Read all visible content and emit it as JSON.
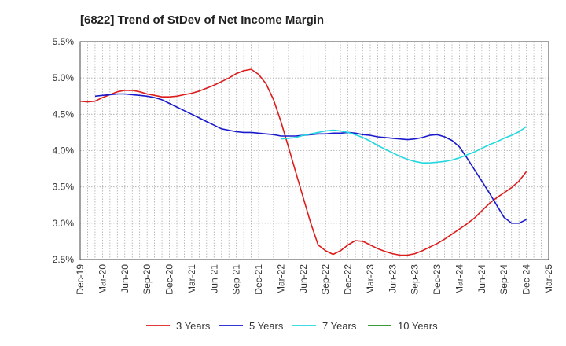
{
  "chart_data": {
    "type": "line",
    "title": "[6822]  Trend of StDev of Net Income Margin",
    "xlabel": "",
    "ylabel": "",
    "x_ticks": [
      "Dec-19",
      "Mar-20",
      "Jun-20",
      "Sep-20",
      "Dec-20",
      "Mar-21",
      "Jun-21",
      "Sep-21",
      "Dec-21",
      "Mar-22",
      "Jun-22",
      "Sep-22",
      "Dec-22",
      "Mar-23",
      "Jun-23",
      "Sep-23",
      "Dec-23",
      "Mar-24",
      "Jun-24",
      "Sep-24",
      "Dec-24",
      "Mar-25"
    ],
    "y_ticks": [
      "2.5%",
      "3.0%",
      "3.5%",
      "4.0%",
      "4.5%",
      "5.0%",
      "5.5%"
    ],
    "ylim": [
      2.5,
      5.5
    ],
    "grid": true,
    "legend_position": "bottom",
    "series": [
      {
        "name": "3 Years",
        "color": "#dd1c1c",
        "points": [
          [
            "Dec-19",
            4.68
          ],
          [
            "Jan-20",
            4.67
          ],
          [
            "Feb-20",
            4.68
          ],
          [
            "Mar-20",
            4.73
          ],
          [
            "Apr-20",
            4.77
          ],
          [
            "May-20",
            4.81
          ],
          [
            "Jun-20",
            4.83
          ],
          [
            "Jul-20",
            4.83
          ],
          [
            "Aug-20",
            4.81
          ],
          [
            "Sep-20",
            4.78
          ],
          [
            "Oct-20",
            4.76
          ],
          [
            "Nov-20",
            4.74
          ],
          [
            "Dec-20",
            4.74
          ],
          [
            "Jan-21",
            4.75
          ],
          [
            "Feb-21",
            4.77
          ],
          [
            "Mar-21",
            4.79
          ],
          [
            "Apr-21",
            4.82
          ],
          [
            "May-21",
            4.86
          ],
          [
            "Jun-21",
            4.9
          ],
          [
            "Jul-21",
            4.95
          ],
          [
            "Aug-21",
            5.0
          ],
          [
            "Sep-21",
            5.06
          ],
          [
            "Oct-21",
            5.1
          ],
          [
            "Nov-21",
            5.12
          ],
          [
            "Dec-21",
            5.05
          ],
          [
            "Jan-22",
            4.92
          ],
          [
            "Feb-22",
            4.7
          ],
          [
            "Mar-22",
            4.4
          ],
          [
            "Apr-22",
            4.05
          ],
          [
            "May-22",
            3.7
          ],
          [
            "Jun-22",
            3.35
          ],
          [
            "Jul-22",
            3.0
          ],
          [
            "Aug-22",
            2.7
          ],
          [
            "Sep-22",
            2.62
          ],
          [
            "Oct-22",
            2.57
          ],
          [
            "Nov-22",
            2.62
          ],
          [
            "Dec-22",
            2.7
          ],
          [
            "Jan-23",
            2.76
          ],
          [
            "Feb-23",
            2.75
          ],
          [
            "Mar-23",
            2.7
          ],
          [
            "Apr-23",
            2.65
          ],
          [
            "May-23",
            2.61
          ],
          [
            "Jun-23",
            2.58
          ],
          [
            "Jul-23",
            2.56
          ],
          [
            "Aug-23",
            2.56
          ],
          [
            "Sep-23",
            2.58
          ],
          [
            "Oct-23",
            2.62
          ],
          [
            "Nov-23",
            2.67
          ],
          [
            "Dec-23",
            2.72
          ],
          [
            "Jan-24",
            2.78
          ],
          [
            "Feb-24",
            2.85
          ],
          [
            "Mar-24",
            2.92
          ],
          [
            "Apr-24",
            2.99
          ],
          [
            "May-24",
            3.07
          ],
          [
            "Jun-24",
            3.17
          ],
          [
            "Jul-24",
            3.27
          ],
          [
            "Aug-24",
            3.35
          ],
          [
            "Sep-24",
            3.42
          ],
          [
            "Oct-24",
            3.49
          ],
          [
            "Nov-24",
            3.58
          ],
          [
            "Dec-24",
            3.71
          ]
        ]
      },
      {
        "name": "5 Years",
        "color": "#1a1acc",
        "points": [
          [
            "Feb-20",
            4.75
          ],
          [
            "Mar-20",
            4.76
          ],
          [
            "Apr-20",
            4.77
          ],
          [
            "May-20",
            4.78
          ],
          [
            "Jun-20",
            4.78
          ],
          [
            "Jul-20",
            4.77
          ],
          [
            "Aug-20",
            4.76
          ],
          [
            "Sep-20",
            4.75
          ],
          [
            "Oct-20",
            4.73
          ],
          [
            "Nov-20",
            4.7
          ],
          [
            "Dec-20",
            4.65
          ],
          [
            "Jan-21",
            4.6
          ],
          [
            "Feb-21",
            4.55
          ],
          [
            "Mar-21",
            4.5
          ],
          [
            "Apr-21",
            4.45
          ],
          [
            "May-21",
            4.4
          ],
          [
            "Jun-21",
            4.35
          ],
          [
            "Jul-21",
            4.3
          ],
          [
            "Aug-21",
            4.28
          ],
          [
            "Sep-21",
            4.26
          ],
          [
            "Oct-21",
            4.25
          ],
          [
            "Nov-21",
            4.25
          ],
          [
            "Dec-21",
            4.24
          ],
          [
            "Jan-22",
            4.23
          ],
          [
            "Feb-22",
            4.22
          ],
          [
            "Mar-22",
            4.2
          ],
          [
            "Apr-22",
            4.2
          ],
          [
            "May-22",
            4.2
          ],
          [
            "Jun-22",
            4.21
          ],
          [
            "Jul-22",
            4.22
          ],
          [
            "Aug-22",
            4.23
          ],
          [
            "Sep-22",
            4.23
          ],
          [
            "Oct-22",
            4.24
          ],
          [
            "Nov-22",
            4.24
          ],
          [
            "Dec-22",
            4.25
          ],
          [
            "Jan-23",
            4.24
          ],
          [
            "Feb-23",
            4.22
          ],
          [
            "Mar-23",
            4.21
          ],
          [
            "Apr-23",
            4.19
          ],
          [
            "May-23",
            4.18
          ],
          [
            "Jun-23",
            4.17
          ],
          [
            "Jul-23",
            4.16
          ],
          [
            "Aug-23",
            4.15
          ],
          [
            "Sep-23",
            4.16
          ],
          [
            "Oct-23",
            4.18
          ],
          [
            "Nov-23",
            4.21
          ],
          [
            "Dec-23",
            4.22
          ],
          [
            "Jan-24",
            4.19
          ],
          [
            "Feb-24",
            4.14
          ],
          [
            "Mar-24",
            4.05
          ],
          [
            "Apr-24",
            3.9
          ],
          [
            "May-24",
            3.74
          ],
          [
            "Jun-24",
            3.58
          ],
          [
            "Jul-24",
            3.42
          ],
          [
            "Aug-24",
            3.25
          ],
          [
            "Sep-24",
            3.08
          ],
          [
            "Oct-24",
            3.0
          ],
          [
            "Nov-24",
            3.0
          ],
          [
            "Dec-24",
            3.05
          ]
        ]
      },
      {
        "name": "7 Years",
        "color": "#22d8e0",
        "points": [
          [
            "Mar-22",
            4.16
          ],
          [
            "Apr-22",
            4.17
          ],
          [
            "May-22",
            4.18
          ],
          [
            "Jun-22",
            4.21
          ],
          [
            "Jul-22",
            4.23
          ],
          [
            "Aug-22",
            4.25
          ],
          [
            "Sep-22",
            4.27
          ],
          [
            "Oct-22",
            4.28
          ],
          [
            "Nov-22",
            4.27
          ],
          [
            "Dec-22",
            4.25
          ],
          [
            "Jan-23",
            4.22
          ],
          [
            "Feb-23",
            4.18
          ],
          [
            "Mar-23",
            4.13
          ],
          [
            "Apr-23",
            4.07
          ],
          [
            "May-23",
            4.02
          ],
          [
            "Jun-23",
            3.97
          ],
          [
            "Jul-23",
            3.92
          ],
          [
            "Aug-23",
            3.88
          ],
          [
            "Sep-23",
            3.85
          ],
          [
            "Oct-23",
            3.83
          ],
          [
            "Nov-23",
            3.83
          ],
          [
            "Dec-23",
            3.84
          ],
          [
            "Jan-24",
            3.85
          ],
          [
            "Feb-24",
            3.87
          ],
          [
            "Mar-24",
            3.9
          ],
          [
            "Apr-24",
            3.94
          ],
          [
            "May-24",
            3.98
          ],
          [
            "Jun-24",
            4.03
          ],
          [
            "Jul-24",
            4.08
          ],
          [
            "Aug-24",
            4.12
          ],
          [
            "Sep-24",
            4.17
          ],
          [
            "Oct-24",
            4.21
          ],
          [
            "Nov-24",
            4.26
          ],
          [
            "Dec-24",
            4.33
          ]
        ]
      },
      {
        "name": "10 Years",
        "color": "#1f8a1f",
        "points": []
      }
    ]
  }
}
